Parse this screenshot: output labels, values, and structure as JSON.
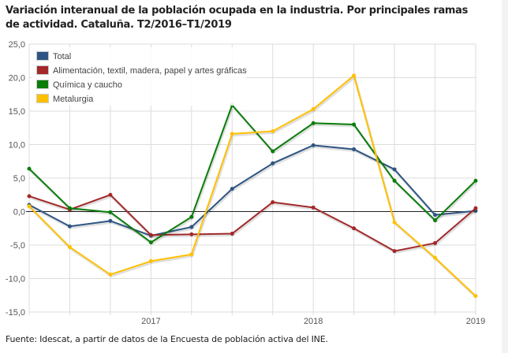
{
  "title": "Variación interanual de la población ocupada en la industria. Por principales ramas de actividad. Cataluña. T2/2016–T1/2019",
  "footer": "Fuente: Idescat, a partir de datos de la Encuesta de población activa del INE.",
  "chart_data": {
    "type": "line",
    "title": "Variación interanual de la población ocupada en la industria. Por principales ramas de actividad. Cataluña. T2/2016–T1/2019",
    "xlabel": "",
    "ylabel": "",
    "x": [
      "T2/2016",
      "T3/2016",
      "T4/2016",
      "T1/2017",
      "T2/2017",
      "T3/2017",
      "T4/2017",
      "T1/2018",
      "T2/2018",
      "T3/2018",
      "T4/2018",
      "T1/2019"
    ],
    "x_tick_labels": [
      {
        "index": 3,
        "label": "2017"
      },
      {
        "index": 7,
        "label": "2018"
      },
      {
        "index": 11,
        "label": "2019"
      }
    ],
    "ylim": [
      -15,
      25
    ],
    "y_ticks": [
      25,
      20,
      15,
      10,
      5,
      0,
      -5,
      -10,
      -15
    ],
    "y_tick_labels": [
      "25,0",
      "20,0",
      "15,0",
      "10,0",
      "5,0",
      "0,0",
      "-5,0",
      "-10,0",
      "-15,0"
    ],
    "grid": true,
    "legend_position": "top-left",
    "series": [
      {
        "name": "Total",
        "color": "#2e5583",
        "values": [
          1.0,
          -2.2,
          -1.4,
          -3.6,
          -2.3,
          3.4,
          7.2,
          9.9,
          9.3,
          6.3,
          -0.5,
          0.1
        ]
      },
      {
        "name": "Alimentación, textil, madera, papel y artes gráficas",
        "color": "#a3292a",
        "values": [
          2.3,
          0.3,
          2.5,
          -3.5,
          -3.4,
          -3.3,
          1.4,
          0.6,
          -2.5,
          -5.9,
          -4.7,
          0.5
        ]
      },
      {
        "name": "Química y caucho",
        "color": "#0a7d0a",
        "values": [
          6.4,
          0.5,
          -0.1,
          -4.6,
          -0.8,
          15.9,
          9.0,
          13.2,
          13.0,
          4.6,
          -1.3,
          4.6
        ]
      },
      {
        "name": "Metalurgia",
        "color": "#ffc000",
        "values": [
          0.8,
          -5.3,
          -9.4,
          -7.4,
          -6.4,
          11.6,
          12.0,
          15.3,
          20.3,
          -1.6,
          -6.9,
          -12.6
        ]
      }
    ]
  }
}
